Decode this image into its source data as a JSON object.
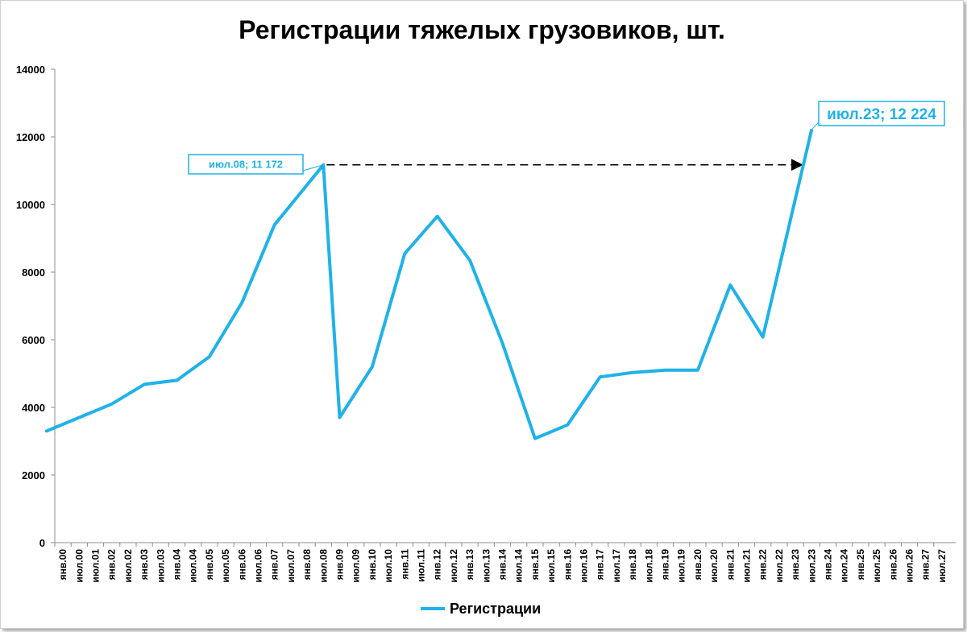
{
  "chart_data": {
    "type": "line",
    "title": "Регистрации тяжелых грузовиков, шт.",
    "xlabel": "",
    "ylabel": "",
    "ylim": [
      0,
      14000
    ],
    "yticks": [
      "0",
      "2000",
      "4000",
      "6000",
      "8000",
      "10000",
      "12000",
      "14000"
    ],
    "categories": [
      "янв.00",
      "июл.00",
      "июл.01",
      "янв.02",
      "июл.02",
      "янв.03",
      "июл.03",
      "янв.04",
      "июл.04",
      "янв.05",
      "июл.05",
      "янв.06",
      "июл.06",
      "янв.07",
      "июл.07",
      "янв.08",
      "июл.08",
      "янв.09",
      "июл.09",
      "янв.10",
      "июл.10",
      "янв.11",
      "июл.11",
      "янв.12",
      "июл.12",
      "янв.13",
      "июл.13",
      "янв.14",
      "июл.14",
      "янв.15",
      "июл.15",
      "янв.16",
      "июл.16",
      "янв.17",
      "июл.17",
      "янв.18",
      "июл.18",
      "янв.19",
      "июл.19",
      "янв.20",
      "июл.20",
      "янв.21",
      "июл.21",
      "янв.22",
      "июл.22",
      "янв.23",
      "июл.23",
      "янв.24",
      "июл.24",
      "янв.25",
      "июл.25",
      "янв.26",
      "июл.26",
      "янв.27",
      "июл.27"
    ],
    "series": [
      {
        "name": "Регистрации",
        "color": "#1fb2e8",
        "points": [
          [
            "янв.00",
            3500
          ],
          [
            "янв.01",
            3300
          ],
          [
            "янв.02",
            4100
          ],
          [
            "янв.03",
            4680
          ],
          [
            "янв.04",
            4800
          ],
          [
            "янв.05",
            5500
          ],
          [
            "янв.06",
            7100
          ],
          [
            "янв.07",
            9400
          ],
          [
            "июл.08",
            11172
          ],
          [
            "янв.09",
            3700
          ],
          [
            "янв.10",
            5200
          ],
          [
            "янв.11",
            8550
          ],
          [
            "янв.12",
            9650
          ],
          [
            "янв.13",
            8350
          ],
          [
            "янв.14",
            5900
          ],
          [
            "янв.15",
            3080
          ],
          [
            "янв.16",
            3480
          ],
          [
            "янв.17",
            4900
          ],
          [
            "янв.18",
            5030
          ],
          [
            "янв.19",
            5100
          ],
          [
            "янв.20",
            5100
          ],
          [
            "янв.21",
            7620
          ],
          [
            "янв.22",
            6080
          ],
          [
            "июл.23",
            12224
          ]
        ]
      }
    ],
    "annotations": [
      {
        "point": "июл.08",
        "text": "июл.08; 11 172",
        "color": "#1fb2e8"
      },
      {
        "point": "июл.23",
        "text": "июл.23; 12 224",
        "color": "#1fb2e8"
      }
    ],
    "arrow": {
      "from": "июл.08",
      "to": "июл.23",
      "value": 11172,
      "style": "dashed"
    },
    "grid": false,
    "legend": "bottom-center"
  }
}
